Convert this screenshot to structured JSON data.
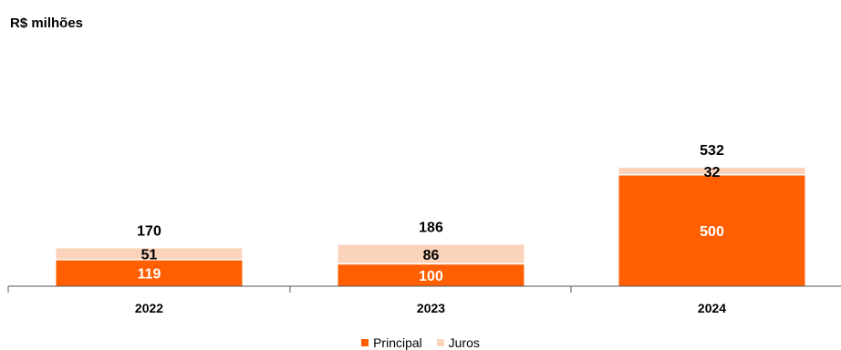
{
  "unit_label": "R$ milhões",
  "colors": {
    "principal": "#FF5F00",
    "juros": "#FBD3BA",
    "axis": "#555555"
  },
  "chart_data": {
    "type": "bar",
    "stacked": true,
    "categories": [
      "2022",
      "2023",
      "2024"
    ],
    "series": [
      {
        "name": "Principal",
        "values": [
          119,
          100,
          500
        ]
      },
      {
        "name": "Juros",
        "values": [
          51,
          86,
          32
        ]
      }
    ],
    "totals": [
      170,
      186,
      532
    ],
    "total_labels": [
      "170",
      "186",
      "532"
    ],
    "segment_labels": [
      [
        "119",
        "51"
      ],
      [
        "100",
        "86"
      ],
      [
        "500",
        "32"
      ]
    ],
    "legend_position": "bottom",
    "grid": false
  },
  "legend": [
    {
      "label": "Principal"
    },
    {
      "label": "Juros"
    }
  ]
}
